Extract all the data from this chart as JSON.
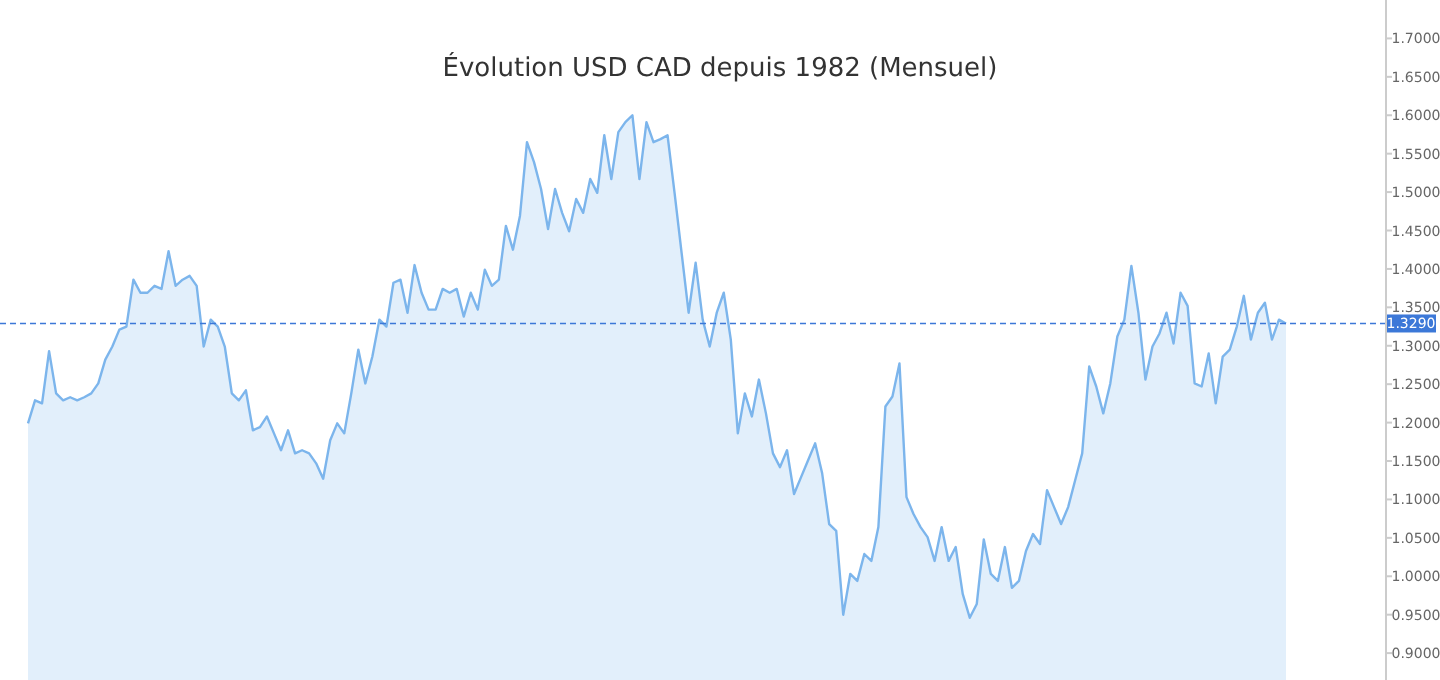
{
  "chart_data": {
    "type": "area",
    "title": "Évolution USD CAD depuis 1982 (Mensuel)",
    "categories": [
      null,
      null,
      null,
      null,
      null,
      null,
      null,
      null,
      null,
      null,
      null,
      null,
      null,
      null,
      null,
      null,
      null,
      null,
      null,
      null,
      null,
      null,
      null,
      null,
      null,
      null,
      null,
      null,
      null,
      null,
      null,
      null,
      null,
      null,
      null,
      null,
      null,
      null,
      null,
      null,
      null,
      null,
      null,
      null,
      null,
      null,
      null,
      null,
      null,
      null,
      null,
      null,
      null,
      null,
      null,
      null,
      null,
      null,
      null,
      null,
      null,
      null,
      null,
      null,
      null,
      null,
      null,
      null,
      null,
      null,
      null,
      null,
      null,
      null,
      null,
      null,
      null,
      null,
      null,
      null,
      null,
      null,
      null,
      null,
      null,
      null,
      null,
      null,
      null,
      null,
      null,
      null,
      null,
      null,
      null,
      null,
      null,
      null,
      null,
      null,
      null,
      null,
      null,
      null,
      null,
      null,
      null,
      null,
      null,
      null,
      null,
      null,
      null,
      null,
      null,
      null,
      null,
      null,
      null,
      null,
      null,
      null,
      null,
      null,
      null,
      null,
      null,
      null,
      null,
      null,
      null,
      null,
      null,
      null,
      null,
      null,
      null,
      null,
      null,
      null,
      null,
      null,
      null,
      null,
      null,
      null,
      null,
      null,
      null,
      null,
      null,
      null,
      null,
      null,
      null,
      null,
      null,
      null,
      null,
      null,
      null,
      null,
      null,
      null,
      null,
      null,
      null,
      null,
      null,
      null,
      null,
      null,
      null,
      null,
      null,
      null,
      null,
      null,
      null,
      null
    ],
    "series": [
      {
        "color": "#7cb5ec",
        "values": [
          1.199,
          1.229,
          1.225,
          1.293,
          1.238,
          1.229,
          1.233,
          1.229,
          1.233,
          1.238,
          1.251,
          1.282,
          1.299,
          1.321,
          1.325,
          1.386,
          1.369,
          1.369,
          1.378,
          1.374,
          1.423,
          1.378,
          1.386,
          1.391,
          1.378,
          1.299,
          1.334,
          1.325,
          1.299,
          1.238,
          1.229,
          1.242,
          1.19,
          1.194,
          1.208,
          1.186,
          1.164,
          1.19,
          1.16,
          1.164,
          1.16,
          1.147,
          1.127,
          1.177,
          1.199,
          1.186,
          1.238,
          1.295,
          1.251,
          1.286,
          1.334,
          1.325,
          1.382,
          1.386,
          1.343,
          1.405,
          1.369,
          1.347,
          1.347,
          1.374,
          1.369,
          1.374,
          1.338,
          1.369,
          1.347,
          1.399,
          1.378,
          1.386,
          1.456,
          1.425,
          1.469,
          1.565,
          1.539,
          1.504,
          1.452,
          1.504,
          1.473,
          1.449,
          1.491,
          1.473,
          1.517,
          1.499,
          1.574,
          1.517,
          1.578,
          1.591,
          1.6,
          1.517,
          1.591,
          1.565,
          1.569,
          1.574,
          1.499,
          1.421,
          1.343,
          1.408,
          1.334,
          1.299,
          1.343,
          1.369,
          1.308,
          1.186,
          1.238,
          1.208,
          1.256,
          1.212,
          1.16,
          1.142,
          1.164,
          1.107,
          1.129,
          1.151,
          1.173,
          1.134,
          1.068,
          1.059,
          0.95,
          1.003,
          0.994,
          1.029,
          1.02,
          1.064,
          1.221,
          1.234,
          1.277,
          1.103,
          1.081,
          1.064,
          1.051,
          1.02,
          1.064,
          1.02,
          1.038,
          0.977,
          0.946,
          0.964,
          1.048,
          1.003,
          0.994,
          1.038,
          0.985,
          0.994,
          1.033,
          1.055,
          1.042,
          1.112,
          1.09,
          1.068,
          1.09,
          1.125,
          1.16,
          1.273,
          1.247,
          1.212,
          1.251,
          1.312,
          1.334,
          1.404,
          1.343,
          1.256,
          1.299,
          1.316,
          1.343,
          1.303,
          1.369,
          1.352,
          1.251,
          1.247,
          1.29,
          1.225,
          1.286,
          1.295,
          1.325,
          1.365,
          1.308,
          1.343,
          1.356,
          1.308,
          1.334,
          1.329
        ]
      }
    ],
    "ylim": [
      0.865,
      1.75
    ],
    "yticks": [
      {
        "value": 0.9,
        "label": "0.9000"
      },
      {
        "value": 0.95,
        "label": "0.9500"
      },
      {
        "value": 1.0,
        "label": "1.0000"
      },
      {
        "value": 1.05,
        "label": "1.0500"
      },
      {
        "value": 1.1,
        "label": "1.1000"
      },
      {
        "value": 1.15,
        "label": "1.1500"
      },
      {
        "value": 1.2,
        "label": "1.2000"
      },
      {
        "value": 1.25,
        "label": "1.2500"
      },
      {
        "value": 1.3,
        "label": "1.3000"
      },
      {
        "value": 1.35,
        "label": "1.3500"
      },
      {
        "value": 1.4,
        "label": "1.4000"
      },
      {
        "value": 1.45,
        "label": "1.4500"
      },
      {
        "value": 1.5,
        "label": "1.5000"
      },
      {
        "value": 1.55,
        "label": "1.5500"
      },
      {
        "value": 1.6,
        "label": "1.6000"
      },
      {
        "value": 1.65,
        "label": "1.6500"
      },
      {
        "value": 1.7,
        "label": "1.7000"
      }
    ],
    "ref_lines": [
      {
        "axis": "y",
        "value": 1.329,
        "label": "1.3290",
        "color": "#3c78d8",
        "line_style": "dashed"
      }
    ],
    "tick_labels": "y",
    "grid": false
  }
}
